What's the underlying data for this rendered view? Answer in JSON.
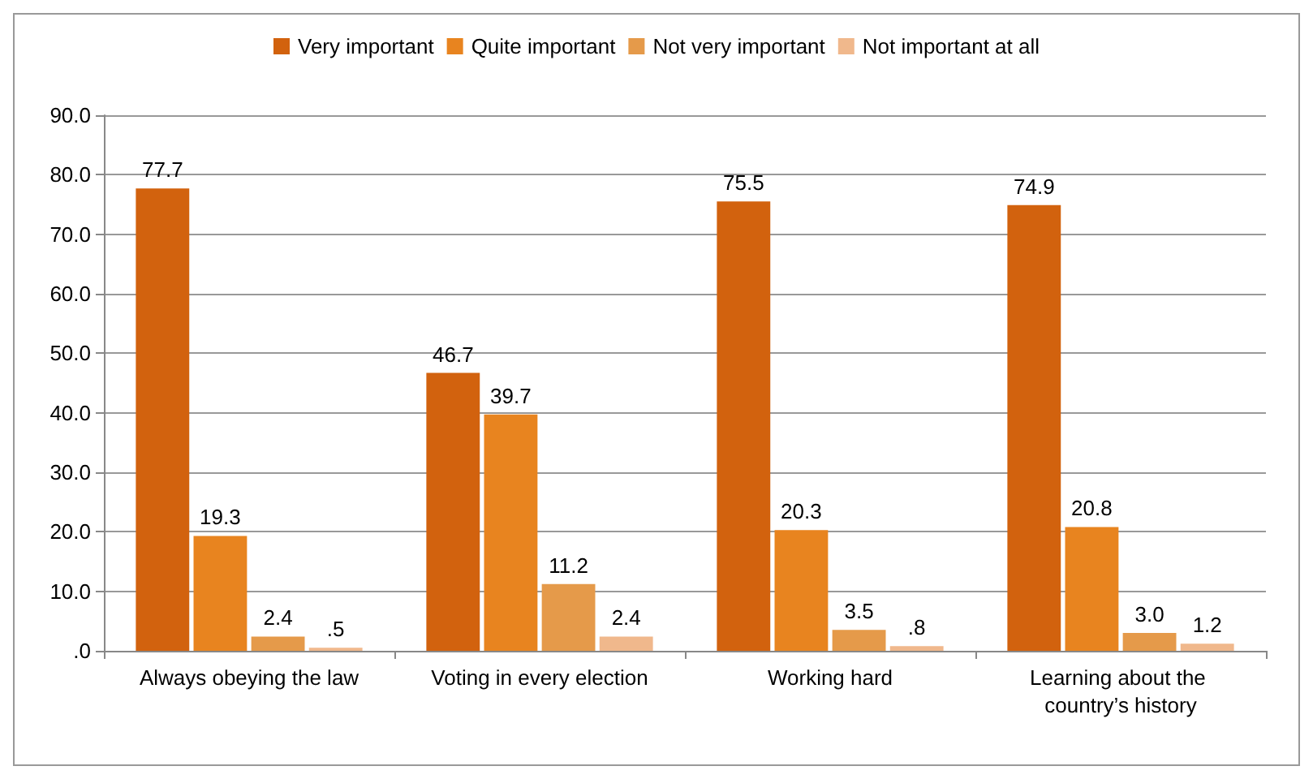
{
  "chart_data": {
    "type": "bar",
    "categories": [
      "Always obeying the law",
      "Voting in every election",
      "Working hard",
      "Learning about the country’s history"
    ],
    "series": [
      {
        "name": "Very important",
        "color": "#d2620e",
        "values": [
          77.7,
          46.7,
          75.5,
          74.9
        ],
        "value_labels": [
          "77.7",
          "46.7",
          "75.5",
          "74.9"
        ]
      },
      {
        "name": "Quite important",
        "color": "#e8841f",
        "values": [
          19.3,
          39.7,
          20.3,
          20.8
        ],
        "value_labels": [
          "19.3",
          "39.7",
          "20.3",
          "20.8"
        ]
      },
      {
        "name": "Not very important",
        "color": "#e59a4a",
        "values": [
          2.4,
          11.2,
          3.5,
          3.0
        ],
        "value_labels": [
          "2.4",
          "11.2",
          "3.5",
          "3.0"
        ]
      },
      {
        "name": "Not important at all",
        "color": "#f0b88c",
        "values": [
          0.5,
          2.4,
          0.8,
          1.2
        ],
        "value_labels": [
          ".5",
          "2.4",
          ".8",
          "1.2"
        ]
      }
    ],
    "ylim": [
      0,
      90
    ],
    "yticks": [
      {
        "value": 0,
        "label": ".0"
      },
      {
        "value": 10,
        "label": "10.0"
      },
      {
        "value": 20,
        "label": "20.0"
      },
      {
        "value": 30,
        "label": "30.0"
      },
      {
        "value": 40,
        "label": "40.0"
      },
      {
        "value": 50,
        "label": "50.0"
      },
      {
        "value": 60,
        "label": "60.0"
      },
      {
        "value": 70,
        "label": "70.0"
      },
      {
        "value": 80,
        "label": "80.0"
      },
      {
        "value": 90,
        "label": "90.0"
      }
    ],
    "grid": "y",
    "legend": "top"
  }
}
